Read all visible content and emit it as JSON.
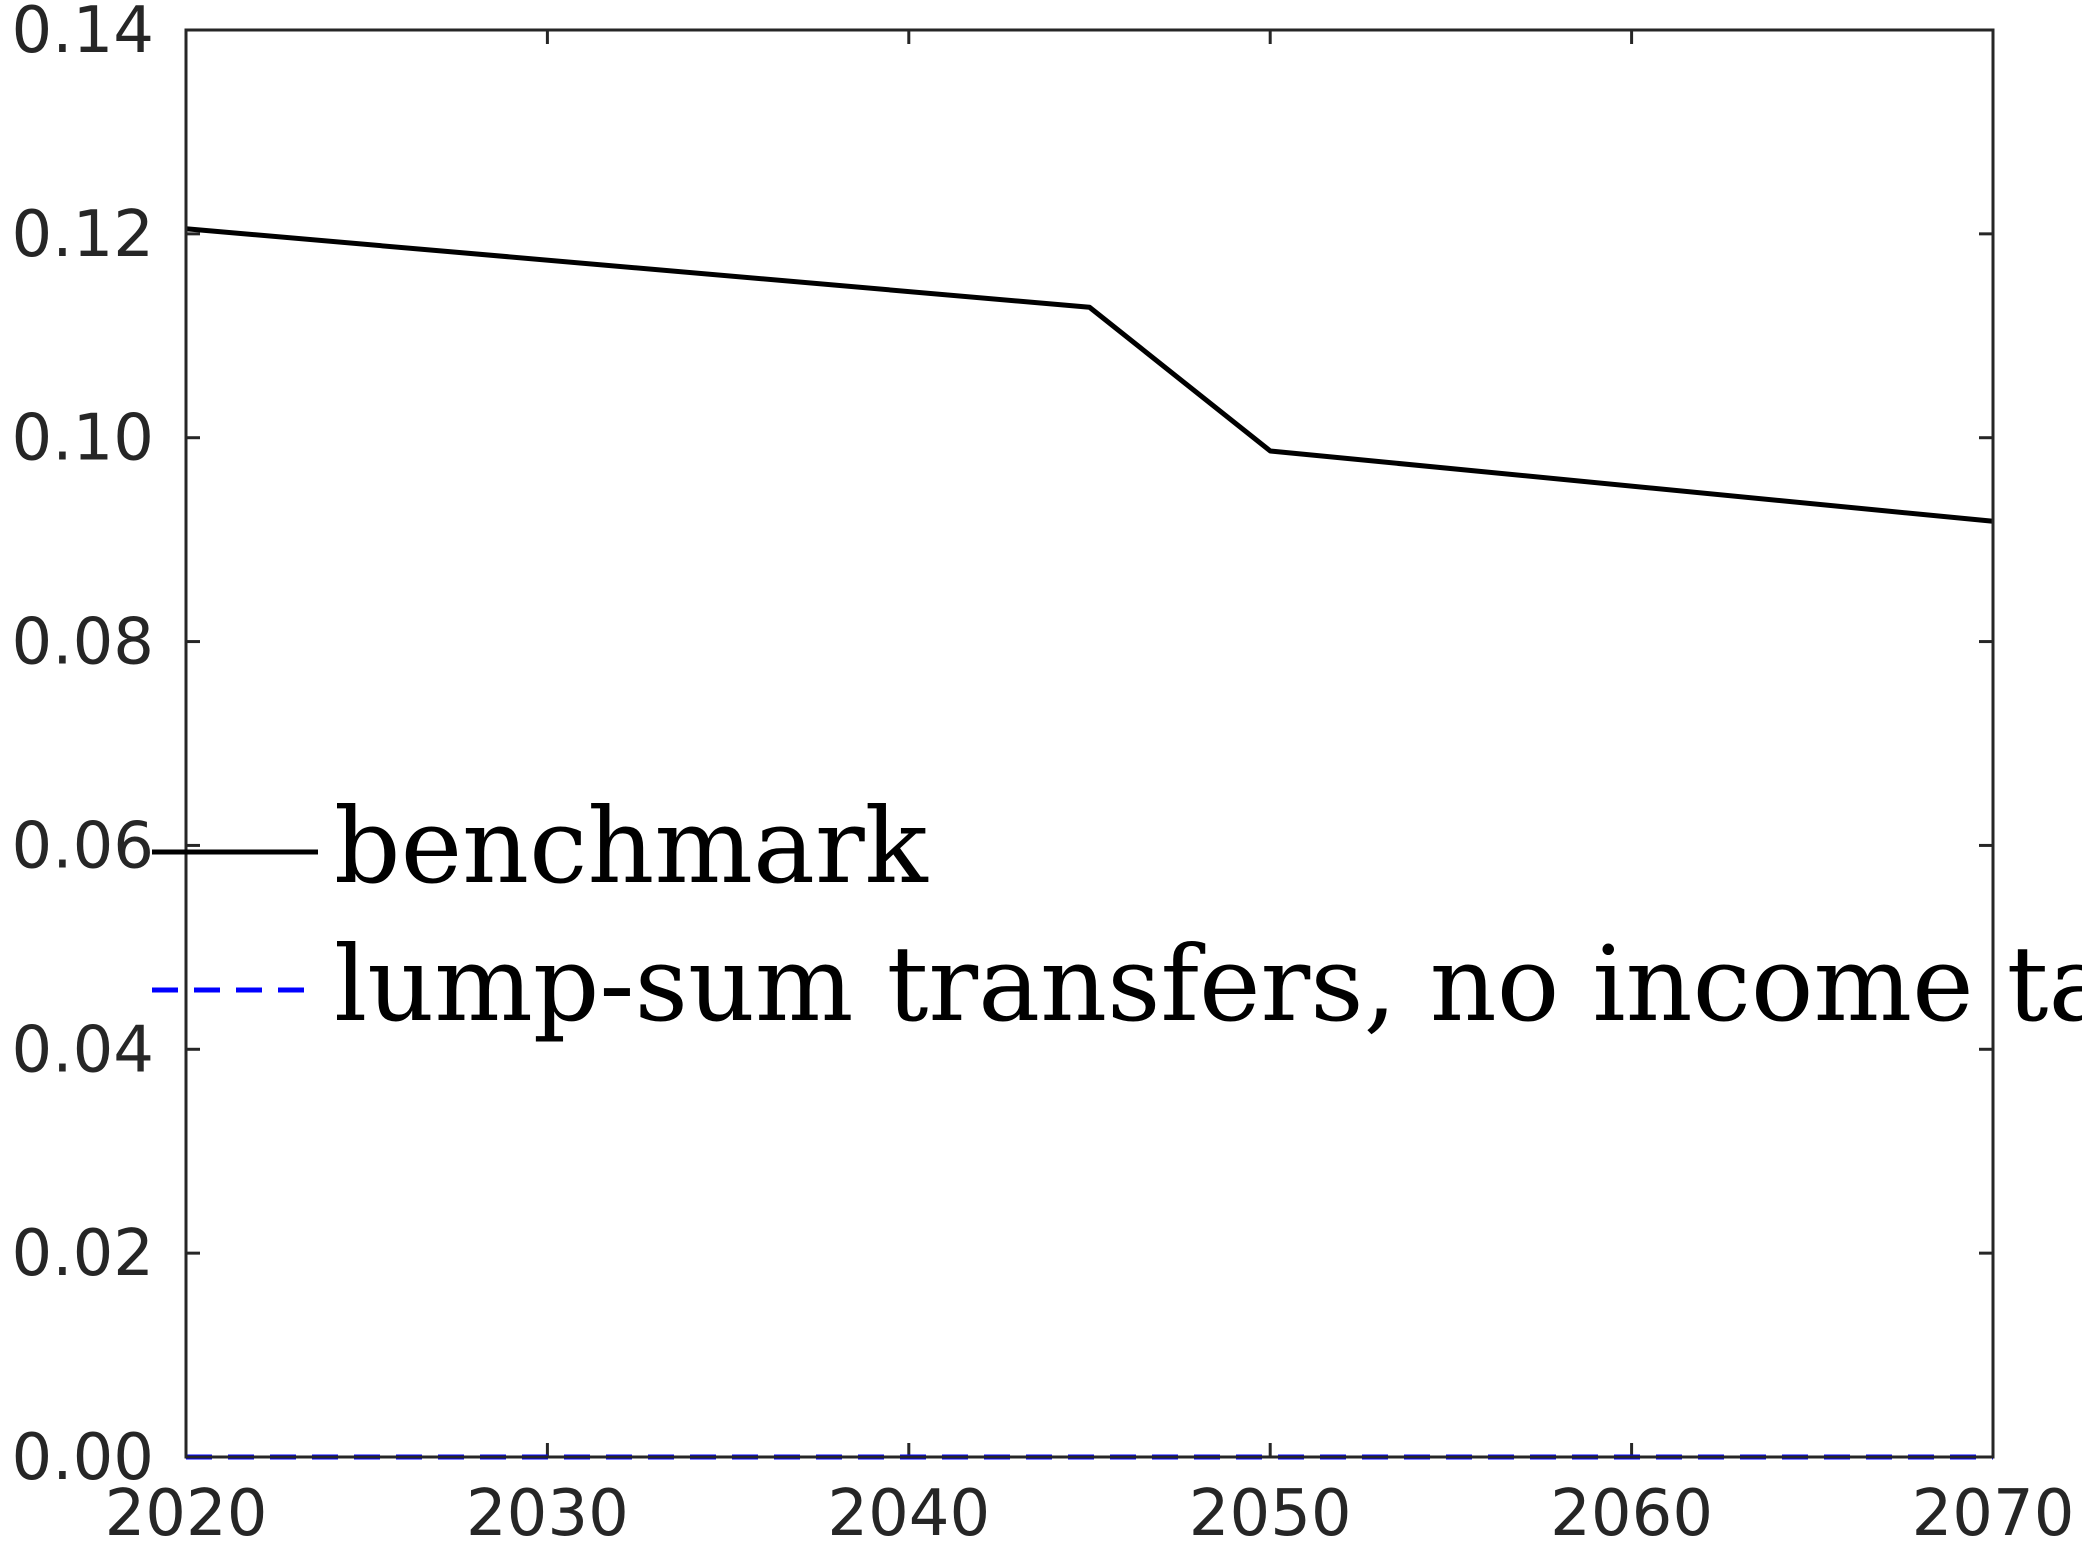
{
  "chart_data": {
    "type": "line",
    "title": "",
    "xlabel": "",
    "ylabel": "",
    "xlim": [
      2020,
      2070
    ],
    "ylim": [
      0,
      0.14
    ],
    "xticks": [
      "2020",
      "2030",
      "2040",
      "2050",
      "2060",
      "2070"
    ],
    "yticks": [
      "0.00",
      "0.02",
      "0.04",
      "0.06",
      "0.08",
      "0.10",
      "0.12",
      "0.14"
    ],
    "grid": false,
    "legend_position": "middle-left",
    "series": [
      {
        "name": "benchmark",
        "color": "#000000",
        "style": "solid",
        "x": [
          2020,
          2045,
          2050,
          2070
        ],
        "y": [
          0.1205,
          0.1128,
          0.0987,
          0.0918
        ]
      },
      {
        "name": "lump-sum transfers, no income tax",
        "color": "#0000ff",
        "style": "dashed",
        "x": [
          2020,
          2070
        ],
        "y": [
          0.0,
          0.0
        ]
      }
    ]
  }
}
